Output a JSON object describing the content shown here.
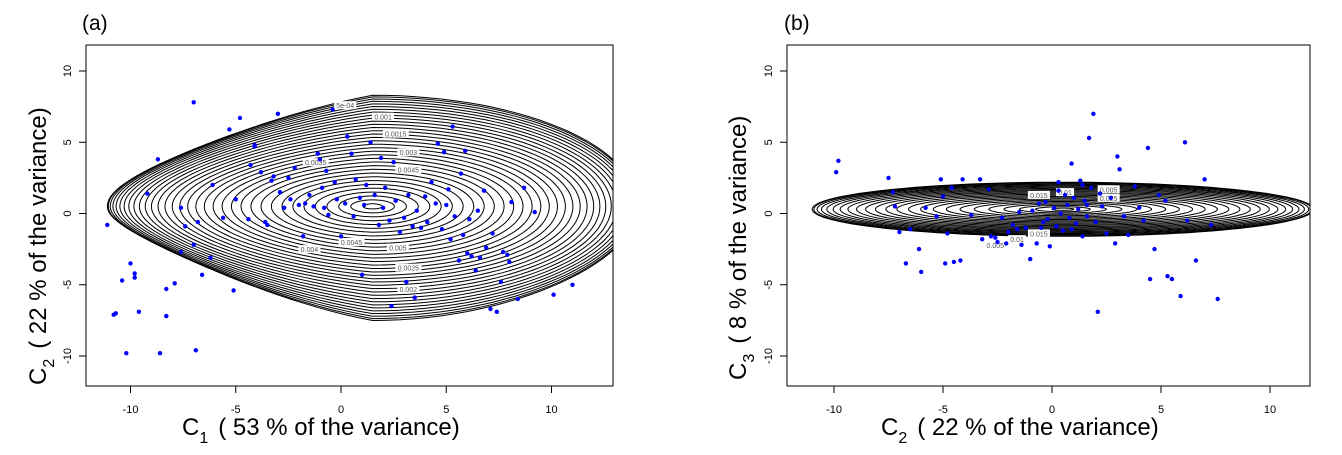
{
  "chart_data": [
    {
      "panel": "(a)",
      "type": "scatter",
      "overlay": "2D kernel density contour",
      "title": "",
      "xlabel": {
        "main": "C",
        "sub": "1",
        "rest": "( 53 % of the variance)"
      },
      "ylabel": {
        "main": "C",
        "sub": "2",
        "rest": "( 22 % of the variance)"
      },
      "xlim": [
        -11.3,
        11.6
      ],
      "ylim": [
        -12,
        12
      ],
      "xticks": [
        -10,
        -5,
        0,
        5,
        10
      ],
      "yticks": [
        -10,
        -5,
        0,
        5,
        10
      ],
      "grid": false,
      "point_color": "#0000ff",
      "contour_color": "#000000",
      "contour_center": [
        1.5,
        0.5
      ],
      "contour_levels_labeled": [
        "5e-04",
        "0.001",
        "0.0015",
        "0.002",
        "0.0025",
        "0.003",
        "0.0035",
        "0.004",
        "0.0045",
        "0.005"
      ],
      "contour_labels": [
        {
          "text": "5e-04",
          "x": 0.2,
          "y": 7.6
        },
        {
          "text": "0.001",
          "x": 2.0,
          "y": 6.8
        },
        {
          "text": "0.0015",
          "x": 2.6,
          "y": 5.6
        },
        {
          "text": "0.003",
          "x": 3.2,
          "y": 4.3
        },
        {
          "text": "0.0035",
          "x": -1.2,
          "y": 3.6
        },
        {
          "text": "0.0045",
          "x": 3.2,
          "y": 3.1
        },
        {
          "text": "0.004",
          "x": -1.5,
          "y": -2.5
        },
        {
          "text": "0.005",
          "x": 2.7,
          "y": -2.4
        },
        {
          "text": "0.0045",
          "x": 0.5,
          "y": -2.0
        },
        {
          "text": "0.0025",
          "x": 3.2,
          "y": -3.8
        },
        {
          "text": "0.002",
          "x": 3.2,
          "y": -5.3
        }
      ],
      "points": [
        [
          -11.1,
          -0.8
        ],
        [
          -10.8,
          -7.1
        ],
        [
          -10.7,
          -7.0
        ],
        [
          -10.4,
          -4.7
        ],
        [
          -10.2,
          -9.8
        ],
        [
          -10.0,
          -3.5
        ],
        [
          -9.8,
          -4.2
        ],
        [
          -9.8,
          -4.5
        ],
        [
          -9.6,
          -6.9
        ],
        [
          -9.2,
          1.4
        ],
        [
          -8.7,
          3.8
        ],
        [
          -8.6,
          -9.8
        ],
        [
          -8.3,
          -5.3
        ],
        [
          -8.3,
          -7.2
        ],
        [
          -7.9,
          -4.9
        ],
        [
          -7.6,
          -2.7
        ],
        [
          -7.6,
          0.4
        ],
        [
          -7.4,
          -0.9
        ],
        [
          -7.0,
          7.8
        ],
        [
          -7.0,
          -2.2
        ],
        [
          -6.9,
          -9.6
        ],
        [
          -6.8,
          -0.6
        ],
        [
          -6.6,
          -4.3
        ],
        [
          -6.2,
          -3.1
        ],
        [
          -6.1,
          2.0
        ],
        [
          -5.6,
          -0.3
        ],
        [
          -5.3,
          5.9
        ],
        [
          -5.1,
          -5.4
        ],
        [
          -5.0,
          1.0
        ],
        [
          -4.8,
          6.7
        ],
        [
          -4.4,
          -0.4
        ],
        [
          -4.3,
          3.4
        ],
        [
          -4.1,
          4.7
        ],
        [
          -4.1,
          4.8
        ],
        [
          -3.8,
          2.9
        ],
        [
          -3.6,
          -0.6
        ],
        [
          -3.5,
          -0.8
        ],
        [
          -3.3,
          2.3
        ],
        [
          -3.2,
          2.6
        ],
        [
          -3.0,
          7.0
        ],
        [
          -2.9,
          1.5
        ],
        [
          -2.7,
          0.4
        ],
        [
          -2.5,
          2.5
        ],
        [
          -2.4,
          1.0
        ],
        [
          -2.2,
          3.2
        ],
        [
          -2.0,
          0.6
        ],
        [
          -1.8,
          -1.6
        ],
        [
          -1.7,
          0.7
        ],
        [
          -1.5,
          1.3
        ],
        [
          -1.3,
          0.5
        ],
        [
          -1.1,
          4.2
        ],
        [
          -1.0,
          3.8
        ],
        [
          -0.9,
          1.8
        ],
        [
          -0.8,
          0.4
        ],
        [
          -0.7,
          3.0
        ],
        [
          -0.6,
          -0.1
        ],
        [
          -0.4,
          7.3
        ],
        [
          -0.3,
          2.2
        ],
        [
          -0.2,
          1.0
        ],
        [
          0.0,
          -1.6
        ],
        [
          0.2,
          0.7
        ],
        [
          0.3,
          5.4
        ],
        [
          0.5,
          4.2
        ],
        [
          0.6,
          -0.2
        ],
        [
          0.7,
          2.4
        ],
        [
          0.9,
          1.1
        ],
        [
          1.0,
          -4.3
        ],
        [
          1.1,
          0.6
        ],
        [
          1.2,
          2.0
        ],
        [
          1.4,
          5.0
        ],
        [
          1.6,
          1.3
        ],
        [
          1.8,
          -0.8
        ],
        [
          1.9,
          3.9
        ],
        [
          2.0,
          0.4
        ],
        [
          2.1,
          1.8
        ],
        [
          2.3,
          -0.5
        ],
        [
          2.4,
          -6.5
        ],
        [
          2.5,
          3.6
        ],
        [
          2.6,
          0.9
        ],
        [
          2.8,
          -1.3
        ],
        [
          3.0,
          -0.3
        ],
        [
          3.1,
          -4.8
        ],
        [
          3.2,
          1.3
        ],
        [
          3.4,
          -0.9
        ],
        [
          3.5,
          -5.9
        ],
        [
          3.6,
          0.2
        ],
        [
          3.8,
          -1.0
        ],
        [
          4.0,
          1.2
        ],
        [
          4.1,
          -0.6
        ],
        [
          4.3,
          2.2
        ],
        [
          4.5,
          0.7
        ],
        [
          4.6,
          4.9
        ],
        [
          4.8,
          -1.1
        ],
        [
          4.9,
          4.3
        ],
        [
          5.0,
          0.6
        ],
        [
          5.1,
          1.7
        ],
        [
          5.2,
          -1.8
        ],
        [
          5.3,
          6.1
        ],
        [
          5.4,
          -0.2
        ],
        [
          5.6,
          -3.3
        ],
        [
          5.7,
          2.8
        ],
        [
          5.8,
          -1.5
        ],
        [
          5.9,
          4.4
        ],
        [
          6.0,
          -2.8
        ],
        [
          6.1,
          -0.4
        ],
        [
          6.2,
          -3.0
        ],
        [
          6.4,
          -4.0
        ],
        [
          6.5,
          0.2
        ],
        [
          6.6,
          -3.1
        ],
        [
          6.8,
          1.6
        ],
        [
          6.9,
          -2.4
        ],
        [
          7.1,
          -6.7
        ],
        [
          7.2,
          -1.4
        ],
        [
          7.4,
          -6.9
        ],
        [
          7.6,
          -4.8
        ],
        [
          7.7,
          -2.7
        ],
        [
          7.9,
          -2.9
        ],
        [
          8.0,
          -3.4
        ],
        [
          8.1,
          0.8
        ],
        [
          8.4,
          -6.0
        ],
        [
          8.7,
          1.8
        ],
        [
          9.2,
          0.1
        ],
        [
          10.1,
          -5.7
        ],
        [
          11.0,
          -5.0
        ]
      ]
    },
    {
      "panel": "(b)",
      "type": "scatter",
      "overlay": "2D kernel density contour",
      "title": "",
      "xlabel": {
        "main": "C",
        "sub": "2",
        "rest": "( 22 % of the variance)"
      },
      "ylabel": {
        "main": "C",
        "sub": "3",
        "rest": "( 8 % of the variance)"
      },
      "xlim": [
        -11.2,
        12.6
      ],
      "ylim": [
        -12,
        12
      ],
      "xticks": [
        -10,
        -5,
        0,
        5,
        10
      ],
      "yticks": [
        -10,
        -5,
        0,
        5,
        10
      ],
      "grid": false,
      "point_color": "#0000ff",
      "contour_color": "#000000",
      "contour_center": [
        0.5,
        0.3
      ],
      "contour_levels_labeled": [
        "0.005",
        "0.01",
        "0.015",
        "0.025"
      ],
      "contour_labels": [
        {
          "text": "0.005",
          "x": 2.6,
          "y": 1.7
        },
        {
          "text": "0.025",
          "x": 2.6,
          "y": 1.1
        },
        {
          "text": "0.015",
          "x": -0.6,
          "y": 1.3
        },
        {
          "text": "0.01",
          "x": 0.6,
          "y": 1.5
        },
        {
          "text": "0.015",
          "x": -0.6,
          "y": -1.4
        },
        {
          "text": "0.01",
          "x": -1.6,
          "y": -1.8
        },
        {
          "text": "0.005",
          "x": -2.6,
          "y": -2.2
        }
      ],
      "points": [
        [
          -9.9,
          2.9
        ],
        [
          -9.8,
          3.7
        ],
        [
          -7.5,
          2.5
        ],
        [
          -7.3,
          1.5
        ],
        [
          -7.2,
          0.5
        ],
        [
          -7.0,
          -1.3
        ],
        [
          -6.7,
          -3.5
        ],
        [
          -6.5,
          -1.1
        ],
        [
          -6.1,
          -2.5
        ],
        [
          -6.0,
          -4.1
        ],
        [
          -5.8,
          0.4
        ],
        [
          -5.3,
          -0.2
        ],
        [
          -5.1,
          2.4
        ],
        [
          -5.0,
          1.2
        ],
        [
          -4.9,
          -3.5
        ],
        [
          -4.8,
          -1.4
        ],
        [
          -4.6,
          1.8
        ],
        [
          -4.5,
          -3.4
        ],
        [
          -4.2,
          -3.3
        ],
        [
          -4.1,
          2.4
        ],
        [
          -3.7,
          -0.1
        ],
        [
          -3.3,
          2.4
        ],
        [
          -3.2,
          -1.8
        ],
        [
          -2.9,
          1.7
        ],
        [
          -2.8,
          -1.6
        ],
        [
          -2.6,
          -1.7
        ],
        [
          -2.5,
          -2.0
        ],
        [
          -2.3,
          -0.3
        ],
        [
          -2.1,
          -2.1
        ],
        [
          -2.0,
          -1.3
        ],
        [
          -1.8,
          -0.8
        ],
        [
          -1.6,
          -1.1
        ],
        [
          -1.4,
          -2.2
        ],
        [
          -1.2,
          -1.0
        ],
        [
          -1.0,
          -3.2
        ],
        [
          -0.9,
          0.2
        ],
        [
          -0.7,
          -2.1
        ],
        [
          -0.5,
          -1.0
        ],
        [
          -0.3,
          0.8
        ],
        [
          -0.2,
          -0.4
        ],
        [
          -0.1,
          -2.3
        ],
        [
          0.1,
          0.4
        ],
        [
          0.2,
          -0.9
        ],
        [
          0.3,
          2.2
        ],
        [
          0.4,
          0.0
        ],
        [
          0.5,
          -1.2
        ],
        [
          0.6,
          1.3
        ],
        [
          0.7,
          0.6
        ],
        [
          0.8,
          -0.3
        ],
        [
          0.9,
          3.5
        ],
        [
          1.0,
          1.1
        ],
        [
          1.1,
          -0.7
        ],
        [
          1.2,
          0.3
        ],
        [
          1.3,
          2.3
        ],
        [
          1.4,
          -1.6
        ],
        [
          1.5,
          0.9
        ],
        [
          1.6,
          -0.2
        ],
        [
          1.7,
          5.3
        ],
        [
          1.8,
          1.8
        ],
        [
          1.9,
          7.0
        ],
        [
          2.0,
          -0.6
        ],
        [
          2.1,
          -6.9
        ],
        [
          2.3,
          0.5
        ],
        [
          2.5,
          -1.4
        ],
        [
          2.7,
          1.1
        ],
        [
          2.9,
          -2.1
        ],
        [
          3.0,
          4.0
        ],
        [
          3.1,
          3.1
        ],
        [
          3.3,
          -0.2
        ],
        [
          3.5,
          -1.5
        ],
        [
          3.8,
          1.9
        ],
        [
          4.0,
          0.4
        ],
        [
          4.2,
          -0.5
        ],
        [
          4.4,
          4.6
        ],
        [
          4.5,
          -4.6
        ],
        [
          4.7,
          -2.5
        ],
        [
          4.9,
          1.3
        ],
        [
          5.2,
          0.9
        ],
        [
          5.3,
          -4.4
        ],
        [
          5.5,
          -4.6
        ],
        [
          5.9,
          -5.8
        ],
        [
          6.1,
          5.0
        ],
        [
          6.2,
          -0.5
        ],
        [
          6.6,
          -3.3
        ],
        [
          7.0,
          2.4
        ],
        [
          7.6,
          -6.0
        ],
        [
          7.3,
          -0.8
        ],
        [
          -0.6,
          0.7
        ],
        [
          0.3,
          1.6
        ],
        [
          1.4,
          2.0
        ],
        [
          2.2,
          1.4
        ],
        [
          -1.5,
          0.1
        ],
        [
          -0.4,
          -0.6
        ],
        [
          0.9,
          -1.1
        ],
        [
          1.6,
          0.6
        ]
      ]
    }
  ],
  "panels": {
    "a": {
      "label": "(a)"
    },
    "b": {
      "label": "(b)"
    }
  }
}
